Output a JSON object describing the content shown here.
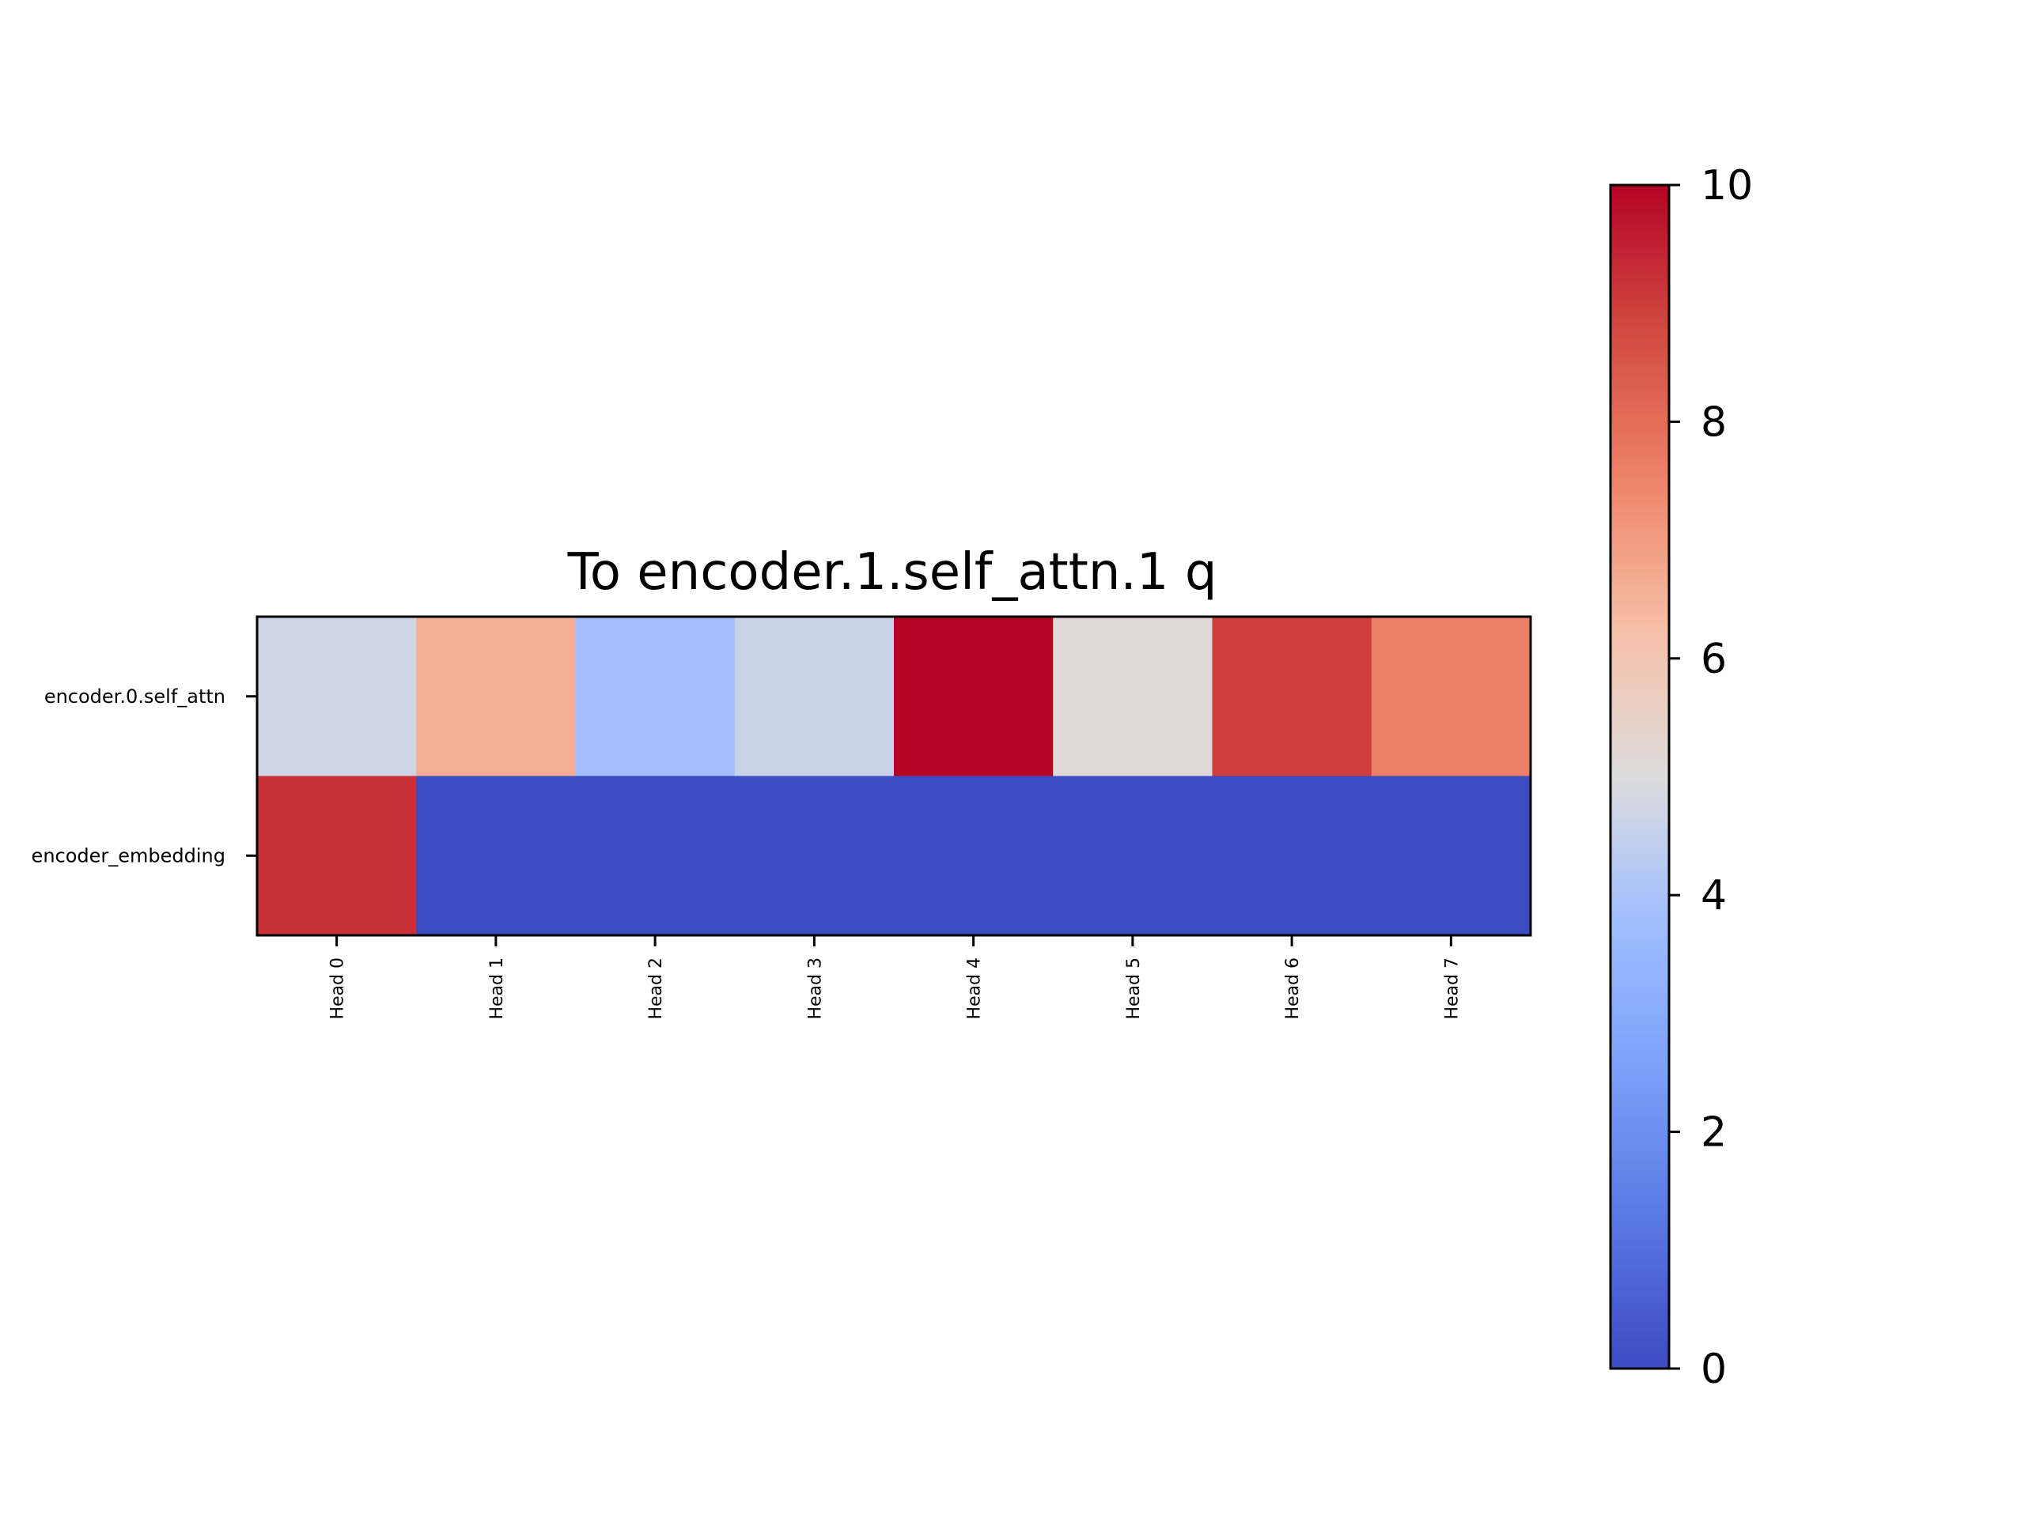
{
  "chart_data": {
    "type": "heatmap",
    "title": "To encoder.1.self_attn.1 q",
    "xlabel": "",
    "ylabel": "",
    "x_categories": [
      "Head 0",
      "Head 1",
      "Head 2",
      "Head 3",
      "Head 4",
      "Head 5",
      "Head 6",
      "Head 7"
    ],
    "y_categories": [
      "encoder.0.self_attn",
      "encoder_embedding"
    ],
    "values": [
      [
        4.7,
        6.6,
        3.8,
        4.6,
        10.0,
        5.1,
        9.0,
        7.6
      ],
      [
        9.2,
        0.0,
        0.0,
        0.0,
        0.0,
        0.0,
        0.0,
        0.0
      ]
    ],
    "colormap": "coolwarm",
    "colorbar": {
      "range": [
        0,
        10
      ],
      "ticks": [
        0,
        2,
        4,
        6,
        8,
        10
      ],
      "tick_labels": [
        "0",
        "2",
        "4",
        "6",
        "8",
        "10"
      ]
    },
    "grid": false
  }
}
